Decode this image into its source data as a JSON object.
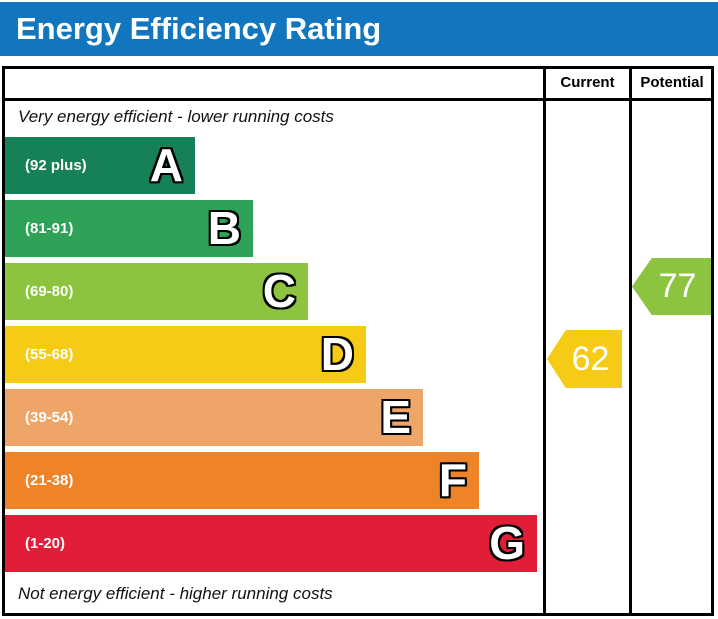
{
  "title": "Energy Efficiency Rating",
  "colors": {
    "header_bg": "#1176bd",
    "border": "#000000"
  },
  "header": {
    "current": "Current",
    "potential": "Potential"
  },
  "notes": {
    "top": "Very energy efficient - lower running costs",
    "bottom": "Not energy efficient - higher running costs"
  },
  "bands": [
    {
      "letter": "A",
      "label": "(92 plus)",
      "color": "#168056"
    },
    {
      "letter": "B",
      "label": "(81-91)",
      "color": "#2ea357"
    },
    {
      "letter": "C",
      "label": "(69-80)",
      "color": "#8cc43f"
    },
    {
      "letter": "D",
      "label": "(55-68)",
      "color": "#f5cb15"
    },
    {
      "letter": "E",
      "label": "(39-54)",
      "color": "#f0a568"
    },
    {
      "letter": "F",
      "label": "(21-38)",
      "color": "#ee8327"
    },
    {
      "letter": "G",
      "label": "(1-20)",
      "color": "#e21d38"
    }
  ],
  "ratings": {
    "current": {
      "value": "62",
      "color": "#f5cb15",
      "band": "D"
    },
    "potential": {
      "value": "77",
      "color": "#8cc43f",
      "band": "C"
    }
  },
  "chart_data": {
    "type": "bar",
    "title": "Energy Efficiency Rating",
    "orientation": "horizontal",
    "bands": [
      {
        "grade": "A",
        "label": "(92 plus)",
        "min": 92,
        "max": 100,
        "color": "#168056"
      },
      {
        "grade": "B",
        "label": "(81-91)",
        "min": 81,
        "max": 91,
        "color": "#2ea357"
      },
      {
        "grade": "C",
        "label": "(69-80)",
        "min": 69,
        "max": 80,
        "color": "#8cc43f"
      },
      {
        "grade": "D",
        "label": "(55-68)",
        "min": 55,
        "max": 68,
        "color": "#f5cb15"
      },
      {
        "grade": "E",
        "label": "(39-54)",
        "min": 39,
        "max": 54,
        "color": "#f0a568"
      },
      {
        "grade": "F",
        "label": "(21-38)",
        "min": 21,
        "max": 38,
        "color": "#ee8327"
      },
      {
        "grade": "G",
        "label": "(1-20)",
        "min": 1,
        "max": 20,
        "color": "#e21d38"
      }
    ],
    "markers": [
      {
        "name": "Current",
        "value": 62,
        "band": "D",
        "color": "#f5cb15"
      },
      {
        "name": "Potential",
        "value": 77,
        "band": "C",
        "color": "#8cc43f"
      }
    ],
    "column_headers": [
      "Current",
      "Potential"
    ],
    "annotation_top": "Very energy efficient - lower running costs",
    "annotation_bottom": "Not energy efficient - higher running costs",
    "legend_position": "none",
    "grid": false
  }
}
